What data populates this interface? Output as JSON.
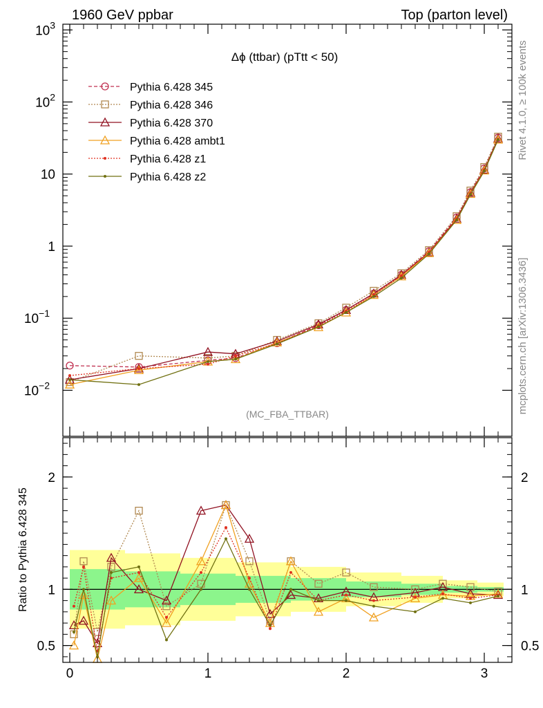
{
  "header": {
    "left": "1960 GeV ppbar",
    "right": "Top (parton level)"
  },
  "side_text": {
    "upper": "Rivet 4.1.0, ≥ 100k events",
    "lower": "mcplots.cern.ch [arXiv:1306.3436]"
  },
  "analysis_label": "(MC_FBA_TTBAR)",
  "chart_data": [
    {
      "type": "line",
      "title": "Δϕ (ttbar) (pTtt < 50)",
      "yscale": "log",
      "ylim": [
        0.0023,
        1200
      ],
      "xlim": [
        -0.05,
        3.2
      ],
      "yticks": [
        {
          "value": 1000,
          "label": "10^3"
        },
        {
          "value": 100,
          "label": "10^2"
        },
        {
          "value": 10,
          "label": "10"
        },
        {
          "value": 1,
          "label": "1"
        },
        {
          "value": 0.1,
          "label": "10^-1"
        },
        {
          "value": 0.01,
          "label": "10^-2"
        }
      ],
      "x": [
        0.0,
        0.5,
        1.0,
        1.2,
        1.5,
        1.8,
        2.0,
        2.2,
        2.4,
        2.6,
        2.8,
        2.9,
        3.0,
        3.1
      ],
      "series": [
        {
          "name": "Pythia 6.428 345",
          "color": "#c03050",
          "marker": "circle",
          "dash": "5,3",
          "values": [
            0.022,
            0.021,
            0.026,
            0.028,
            0.045,
            0.08,
            0.13,
            0.22,
            0.4,
            0.85,
            2.5,
            5.6,
            12.0,
            32.0
          ]
        },
        {
          "name": "Pythia 6.428 346",
          "color": "#b08850",
          "marker": "square",
          "dash": "2,2",
          "values": [
            0.013,
            0.03,
            0.028,
            0.03,
            0.05,
            0.085,
            0.14,
            0.24,
            0.42,
            0.88,
            2.6,
            5.9,
            12.5,
            33.0
          ]
        },
        {
          "name": "Pythia 6.428 370",
          "color": "#901020",
          "marker": "triangle",
          "dash": "",
          "values": [
            0.014,
            0.02,
            0.034,
            0.032,
            0.048,
            0.082,
            0.13,
            0.22,
            0.4,
            0.82,
            2.4,
            5.5,
            11.5,
            31.0
          ]
        },
        {
          "name": "Pythia 6.428 ambt1",
          "color": "#f0a020",
          "marker": "triangle",
          "dash": "",
          "values": [
            0.012,
            0.019,
            0.025,
            0.027,
            0.046,
            0.075,
            0.12,
            0.21,
            0.38,
            0.8,
            2.3,
            5.3,
            11.2,
            30.0
          ]
        },
        {
          "name": "Pythia 6.428 z1",
          "color": "#e03020",
          "marker": "dot",
          "dash": "2,2",
          "values": [
            0.016,
            0.02,
            0.023,
            0.03,
            0.045,
            0.078,
            0.125,
            0.21,
            0.39,
            0.82,
            2.4,
            5.4,
            11.4,
            30.5
          ]
        },
        {
          "name": "Pythia 6.428 z2",
          "color": "#707010",
          "marker": "dot",
          "dash": "",
          "values": [
            0.014,
            0.012,
            0.025,
            0.027,
            0.044,
            0.076,
            0.12,
            0.2,
            0.36,
            0.78,
            2.3,
            5.2,
            11.0,
            30.0
          ]
        }
      ]
    },
    {
      "type": "line",
      "ylabel": "Ratio to Pythia 6.428 345",
      "ylim": [
        0.35,
        2.35
      ],
      "xlim": [
        -0.05,
        3.2
      ],
      "xticks": [
        "0",
        "1",
        "2",
        "3"
      ],
      "yticks": [
        "0.5",
        "1",
        "2"
      ],
      "reference_line": 1,
      "band_outer_halfwidth": [
        0.35,
        0.32,
        0.28,
        0.24,
        0.2,
        0.15,
        0.12,
        0.08,
        0.06,
        0.04
      ],
      "band_inner_halfwidth": [
        0.18,
        0.16,
        0.14,
        0.12,
        0.1,
        0.07,
        0.05,
        0.03,
        0.02,
        0.015
      ],
      "band_x": [
        0.0,
        0.4,
        0.8,
        1.2,
        1.6,
        2.0,
        2.4,
        2.7,
        2.95,
        3.14
      ],
      "x": [
        0.03,
        0.1,
        0.2,
        0.3,
        0.5,
        0.7,
        0.95,
        1.13,
        1.3,
        1.45,
        1.6,
        1.8,
        2.0,
        2.2,
        2.5,
        2.7,
        2.9,
        3.1
      ],
      "series": [
        {
          "name": "Pythia 6.428 346",
          "color": "#b08850",
          "marker": "square",
          "dash": "2,2",
          "values": [
            0.6,
            1.25,
            0.62,
            1.2,
            1.7,
            0.85,
            1.05,
            1.75,
            1.25,
            0.72,
            1.25,
            1.05,
            1.15,
            1.02,
            1.0,
            1.05,
            1.02,
            0.98
          ]
        },
        {
          "name": "Pythia 6.428 370",
          "color": "#901020",
          "marker": "triangle",
          "dash": "",
          "values": [
            0.68,
            0.72,
            0.52,
            1.28,
            1.0,
            0.9,
            1.7,
            1.75,
            1.45,
            0.78,
            0.95,
            0.92,
            0.98,
            0.93,
            0.97,
            1.02,
            0.96,
            0.95
          ]
        },
        {
          "name": "Pythia 6.428 ambt1",
          "color": "#f0a020",
          "marker": "triangle",
          "dash": "",
          "values": [
            0.5,
            0.95,
            0.38,
            0.9,
            1.1,
            0.7,
            1.25,
            1.75,
            1.05,
            0.7,
            1.25,
            0.8,
            0.92,
            0.75,
            0.92,
            0.95,
            0.94,
            0.96
          ]
        },
        {
          "name": "Pythia 6.428 z1",
          "color": "#e03020",
          "marker": "dot",
          "dash": "2,2",
          "values": [
            0.85,
            1.2,
            0.45,
            1.1,
            1.15,
            0.75,
            1.15,
            1.55,
            1.1,
            0.65,
            1.15,
            0.9,
            0.95,
            0.9,
            0.93,
            0.96,
            0.92,
            0.95
          ]
        },
        {
          "name": "Pythia 6.428 z2",
          "color": "#707010",
          "marker": "dot",
          "dash": "",
          "values": [
            0.62,
            1.0,
            0.4,
            1.15,
            1.2,
            0.55,
            1.0,
            1.45,
            1.0,
            0.68,
            1.0,
            0.9,
            0.9,
            0.85,
            0.8,
            0.92,
            0.88,
            0.94
          ]
        }
      ]
    }
  ]
}
